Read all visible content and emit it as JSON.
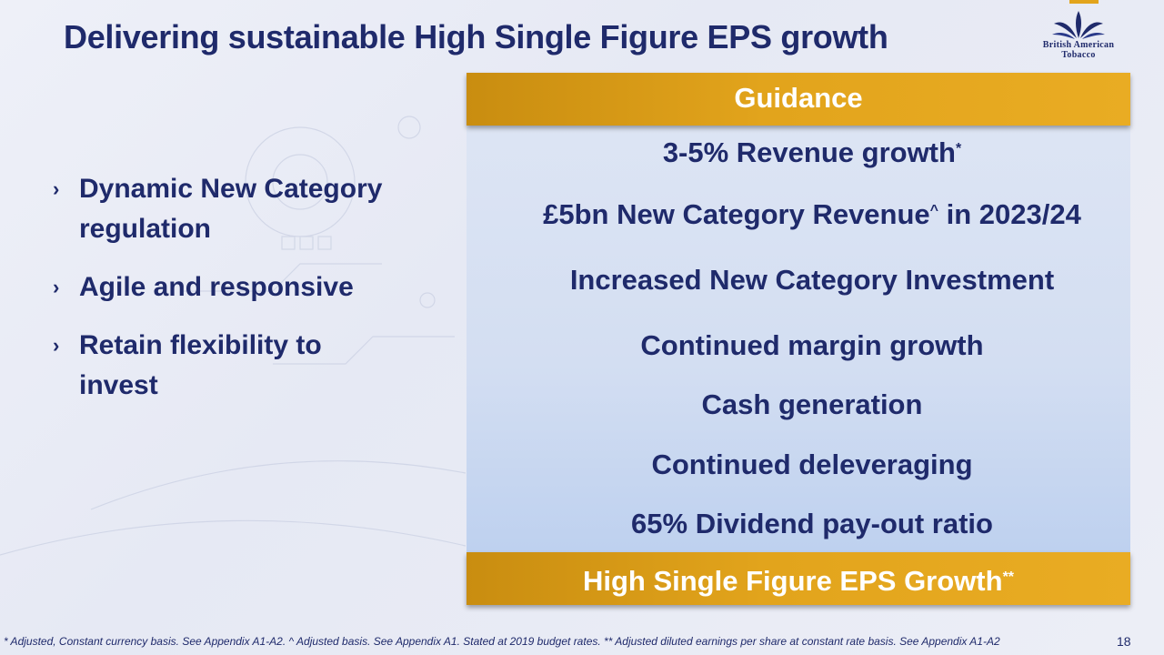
{
  "slide": {
    "title": "Delivering sustainable High Single Figure EPS growth",
    "page_number": "18"
  },
  "logo": {
    "line1": "British American",
    "line2": "Tobacco"
  },
  "bullets": [
    {
      "marker": "›",
      "text": "Dynamic New Category regulation"
    },
    {
      "marker": "›",
      "text": "Agile and responsive"
    },
    {
      "marker": "›",
      "text": "Retain flexibility to invest"
    }
  ],
  "guidance": {
    "header": "Guidance",
    "items": [
      {
        "text": "3-5% Revenue growth",
        "sup": "*",
        "after": ""
      },
      {
        "text": "£5bn New Category Revenue",
        "sup": "^",
        "after": " in 2023/24"
      },
      {
        "text": "Increased New Category Investment",
        "sup": "",
        "after": ""
      },
      {
        "text": "Continued margin growth",
        "sup": "",
        "after": ""
      },
      {
        "text": "Cash generation",
        "sup": "",
        "after": ""
      },
      {
        "text": "Continued deleveraging",
        "sup": "",
        "after": ""
      },
      {
        "text": "65% Dividend pay-out ratio",
        "sup": "",
        "after": ""
      }
    ],
    "footer": "High Single Figure EPS Growth",
    "footer_sup": "**"
  },
  "footnote": "* Adjusted, Constant currency basis. See Appendix A1-A2. ^ Adjusted basis. See Appendix A1. Stated at 2019 budget rates. ** Adjusted diluted earnings per share at constant rate basis. See Appendix A1-A2",
  "colors": {
    "navy": "#1f2a6b",
    "gold": "#e2a41c",
    "panel": "#d3def2"
  }
}
